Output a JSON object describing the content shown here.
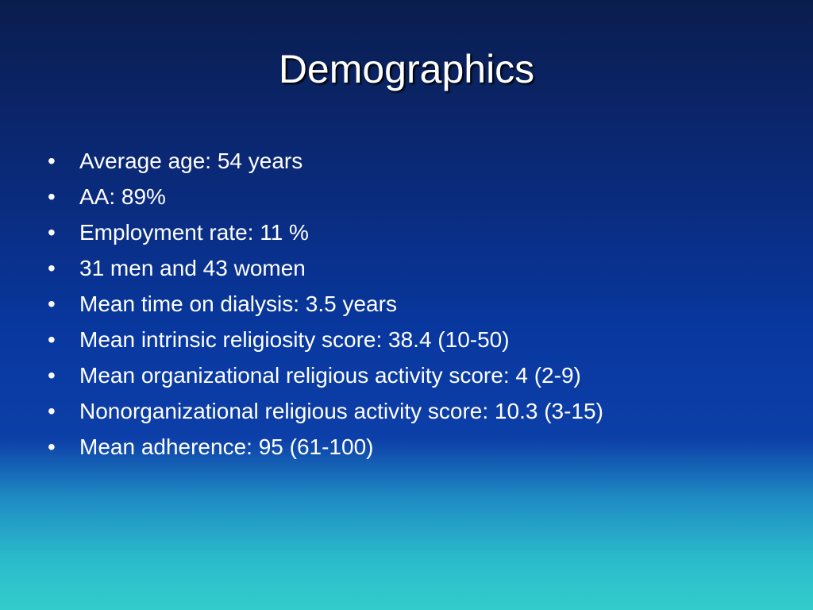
{
  "slide": {
    "title": "Demographics",
    "bullets": [
      "Average age: 54 years",
      "AA: 89%",
      "Employment rate: 11 %",
      "31 men and 43 women",
      "Mean time on dialysis: 3.5 years",
      "Mean intrinsic religiosity score: 38.4 (10-50)",
      "Mean organizational religious activity score: 4 (2-9)",
      "Nonorganizational religious activity score: 10.3 (3-15)",
      "Mean adherence: 95 (61-100)"
    ]
  }
}
